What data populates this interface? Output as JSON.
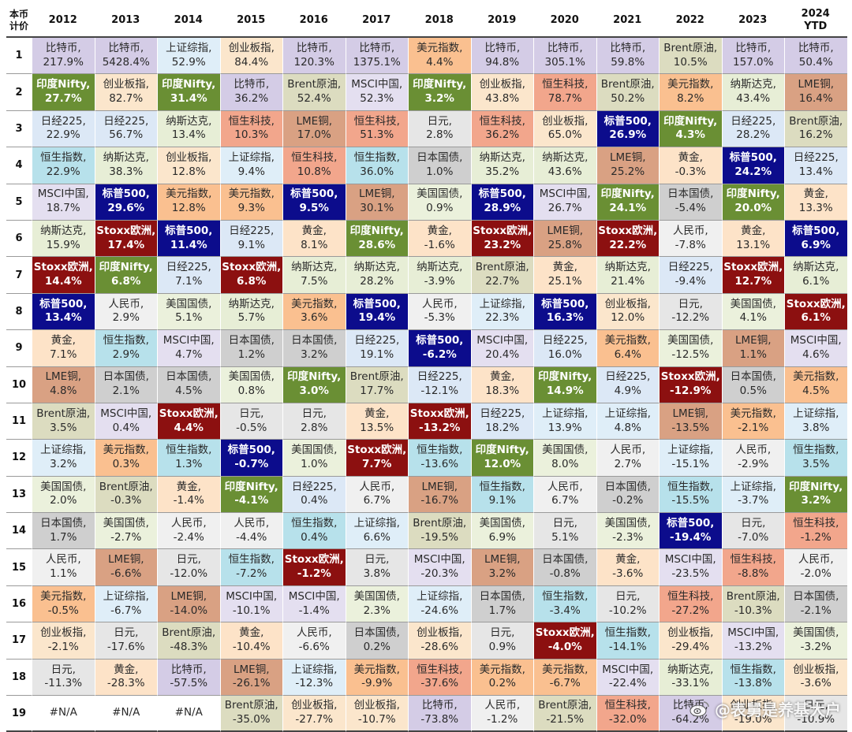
{
  "corner_label": "本币\n计价",
  "columns": [
    "2012",
    "2013",
    "2014",
    "2015",
    "2016",
    "2017",
    "2018",
    "2019",
    "2020",
    "2021",
    "2022",
    "2023",
    "2024\nYTD"
  ],
  "asset_colors": {
    "比特币": "#d4cce6",
    "印度Nifty": "#6a8f34",
    "日经225": "#dce8f6",
    "恒生指数": "#b7e1eb",
    "MSCI中国": "#e4dff0",
    "纳斯达克": "#e7eed6",
    "Stoxx欧洲": "#8c1010",
    "标普500": "#0c0c8c",
    "黄金": "#fde3c8",
    "LME铜": "#d9a183",
    "Brent原油": "#dcdcc0",
    "上证综指": "#dfeef8",
    "美国国债": "#ebf1dc",
    "日本国债": "#cfcfcf",
    "人民币": "#f0f0f0",
    "美元指数": "#fac090",
    "创业板指": "#fbe6cc",
    "日元": "#e6e6e6",
    "恒生科技": "#f2a68c",
    "#N/A": "#ffffff"
  },
  "dark_assets": [
    "印度Nifty",
    "Stoxx欧洲",
    "标普500"
  ],
  "chart_data": {
    "type": "table",
    "title": "",
    "columns": [
      "2012",
      "2013",
      "2014",
      "2015",
      "2016",
      "2017",
      "2018",
      "2019",
      "2020",
      "2021",
      "2022",
      "2023",
      "2024 YTD"
    ],
    "rows": [
      {
        "rank": "1",
        "cells": [
          [
            "比特币",
            "217.9%"
          ],
          [
            "比特币",
            "5428.4%"
          ],
          [
            "上证综指",
            "52.9%"
          ],
          [
            "创业板指",
            "84.4%"
          ],
          [
            "比特币",
            "120.3%"
          ],
          [
            "比特币",
            "1375.1%"
          ],
          [
            "美元指数",
            "4.4%"
          ],
          [
            "比特币",
            "94.8%"
          ],
          [
            "比特币",
            "305.1%"
          ],
          [
            "比特币",
            "59.8%"
          ],
          [
            "Brent原油",
            "10.5%"
          ],
          [
            "比特币",
            "157.0%"
          ],
          [
            "比特币",
            "50.4%"
          ]
        ]
      },
      {
        "rank": "2",
        "cells": [
          [
            "印度Nifty",
            "27.7%"
          ],
          [
            "创业板指",
            "82.7%"
          ],
          [
            "印度Nifty",
            "31.4%"
          ],
          [
            "比特币",
            "36.2%"
          ],
          [
            "Brent原油",
            "52.4%"
          ],
          [
            "MSCI中国",
            "52.3%"
          ],
          [
            "印度Nifty",
            "3.2%"
          ],
          [
            "创业板指",
            "43.8%"
          ],
          [
            "恒生科技",
            "78.7%"
          ],
          [
            "Brent原油",
            "50.2%"
          ],
          [
            "美元指数",
            "8.2%"
          ],
          [
            "纳斯达克",
            "43.4%"
          ],
          [
            "LME铜",
            "16.4%"
          ]
        ]
      },
      {
        "rank": "3",
        "cells": [
          [
            "日经225",
            "22.9%"
          ],
          [
            "日经225",
            "56.7%"
          ],
          [
            "纳斯达克",
            "13.4%"
          ],
          [
            "恒生科技",
            "10.3%"
          ],
          [
            "LME铜",
            "17.0%"
          ],
          [
            "恒生科技",
            "51.3%"
          ],
          [
            "日元",
            "2.8%"
          ],
          [
            "恒生科技",
            "36.2%"
          ],
          [
            "创业板指",
            "65.0%"
          ],
          [
            "标普500",
            "26.9%"
          ],
          [
            "印度Nifty",
            "4.3%"
          ],
          [
            "日经225",
            "28.2%"
          ],
          [
            "Brent原油",
            "16.2%"
          ]
        ]
      },
      {
        "rank": "4",
        "cells": [
          [
            "恒生指数",
            "22.9%"
          ],
          [
            "纳斯达克",
            "38.3%"
          ],
          [
            "创业板指",
            "12.8%"
          ],
          [
            "上证综指",
            "9.4%"
          ],
          [
            "恒生科技",
            "10.8%"
          ],
          [
            "恒生指数",
            "36.0%"
          ],
          [
            "日本国债",
            "1.0%"
          ],
          [
            "纳斯达克",
            "35.2%"
          ],
          [
            "纳斯达克",
            "43.6%"
          ],
          [
            "LME铜",
            "25.2%"
          ],
          [
            "黄金",
            "-0.3%"
          ],
          [
            "标普500",
            "24.2%"
          ],
          [
            "日经225",
            "13.4%"
          ]
        ]
      },
      {
        "rank": "5",
        "cells": [
          [
            "MSCI中国",
            "18.7%"
          ],
          [
            "标普500",
            "29.6%"
          ],
          [
            "美元指数",
            "12.8%"
          ],
          [
            "美元指数",
            "9.3%"
          ],
          [
            "标普500",
            "9.5%"
          ],
          [
            "LME铜",
            "30.1%"
          ],
          [
            "美国国债",
            "0.9%"
          ],
          [
            "标普500",
            "28.9%"
          ],
          [
            "MSCI中国",
            "26.7%"
          ],
          [
            "印度Nifty",
            "24.1%"
          ],
          [
            "日本国债",
            "-5.4%"
          ],
          [
            "印度Nifty",
            "20.0%"
          ],
          [
            "黄金",
            "13.3%"
          ]
        ]
      },
      {
        "rank": "6",
        "cells": [
          [
            "纳斯达克",
            "15.9%"
          ],
          [
            "Stoxx欧洲",
            "17.4%"
          ],
          [
            "标普500",
            "11.4%"
          ],
          [
            "日经225",
            "9.1%"
          ],
          [
            "黄金",
            "8.1%"
          ],
          [
            "印度Nifty",
            "28.6%"
          ],
          [
            "黄金",
            "-1.6%"
          ],
          [
            "Stoxx欧洲",
            "23.2%"
          ],
          [
            "LME铜",
            "25.8%"
          ],
          [
            "Stoxx欧洲",
            "22.2%"
          ],
          [
            "人民币",
            "-7.8%"
          ],
          [
            "黄金",
            "13.1%"
          ],
          [
            "标普500",
            "6.9%"
          ]
        ]
      },
      {
        "rank": "7",
        "cells": [
          [
            "Stoxx欧洲",
            "14.4%"
          ],
          [
            "印度Nifty",
            "6.8%"
          ],
          [
            "日经225",
            "7.1%"
          ],
          [
            "Stoxx欧洲",
            "6.8%"
          ],
          [
            "纳斯达克",
            "7.5%"
          ],
          [
            "纳斯达克",
            "28.2%"
          ],
          [
            "纳斯达克",
            "-3.9%"
          ],
          [
            "Brent原油",
            "22.7%"
          ],
          [
            "黄金",
            "25.1%"
          ],
          [
            "纳斯达克",
            "21.4%"
          ],
          [
            "日经225",
            "-9.4%"
          ],
          [
            "Stoxx欧洲",
            "12.7%"
          ],
          [
            "纳斯达克",
            "6.1%"
          ]
        ]
      },
      {
        "rank": "8",
        "cells": [
          [
            "标普500",
            "13.4%"
          ],
          [
            "人民币",
            "2.9%"
          ],
          [
            "美国国债",
            "5.1%"
          ],
          [
            "纳斯达克",
            "5.7%"
          ],
          [
            "美元指数",
            "3.6%"
          ],
          [
            "标普500",
            "19.4%"
          ],
          [
            "人民币",
            "-5.3%"
          ],
          [
            "上证综指",
            "22.3%"
          ],
          [
            "标普500",
            "16.3%"
          ],
          [
            "创业板指",
            "12.0%"
          ],
          [
            "日元",
            "-12.2%"
          ],
          [
            "美国国债",
            "4.1%"
          ],
          [
            "Stoxx欧洲",
            "6.1%"
          ]
        ]
      },
      {
        "rank": "9",
        "cells": [
          [
            "黄金",
            "7.1%"
          ],
          [
            "恒生指数",
            "2.9%"
          ],
          [
            "MSCI中国",
            "4.7%"
          ],
          [
            "日本国债",
            "1.2%"
          ],
          [
            "日本国债",
            "3.2%"
          ],
          [
            "日经225",
            "19.1%"
          ],
          [
            "标普500",
            "-6.2%"
          ],
          [
            "MSCI中国",
            "20.4%"
          ],
          [
            "日经225",
            "16.0%"
          ],
          [
            "美元指数",
            "6.4%"
          ],
          [
            "美国国债",
            "-12.5%"
          ],
          [
            "LME铜",
            "1.1%"
          ],
          [
            "MSCI中国",
            "4.6%"
          ]
        ]
      },
      {
        "rank": "10",
        "cells": [
          [
            "LME铜",
            "4.8%"
          ],
          [
            "日本国债",
            "2.1%"
          ],
          [
            "日本国债",
            "4.5%"
          ],
          [
            "美国国债",
            "0.8%"
          ],
          [
            "印度Nifty",
            "3.0%"
          ],
          [
            "Brent原油",
            "17.7%"
          ],
          [
            "日经225",
            "-12.1%"
          ],
          [
            "黄金",
            "18.3%"
          ],
          [
            "印度Nifty",
            "14.9%"
          ],
          [
            "日经225",
            "4.9%"
          ],
          [
            "Stoxx欧洲",
            "-12.9%"
          ],
          [
            "日本国债",
            "0.5%"
          ],
          [
            "美元指数",
            "4.5%"
          ]
        ]
      },
      {
        "rank": "11",
        "cells": [
          [
            "Brent原油",
            "3.5%"
          ],
          [
            "MSCI中国",
            "0.4%"
          ],
          [
            "Stoxx欧洲",
            "4.4%"
          ],
          [
            "日元",
            "-0.5%"
          ],
          [
            "日元",
            "2.8%"
          ],
          [
            "黄金",
            "13.5%"
          ],
          [
            "Stoxx欧洲",
            "-13.2%"
          ],
          [
            "日经225",
            "18.2%"
          ],
          [
            "上证综指",
            "13.9%"
          ],
          [
            "上证综指",
            "4.8%"
          ],
          [
            "LME铜",
            "-13.5%"
          ],
          [
            "美元指数",
            "-2.1%"
          ],
          [
            "上证综指",
            "3.8%"
          ]
        ]
      },
      {
        "rank": "12",
        "cells": [
          [
            "上证综指",
            "3.2%"
          ],
          [
            "美元指数",
            "0.3%"
          ],
          [
            "恒生指数",
            "1.3%"
          ],
          [
            "标普500",
            "-0.7%"
          ],
          [
            "美国国债",
            "1.0%"
          ],
          [
            "Stoxx欧洲",
            "7.7%"
          ],
          [
            "恒生指数",
            "-13.6%"
          ],
          [
            "印度Nifty",
            "12.0%"
          ],
          [
            "美国国债",
            "8.0%"
          ],
          [
            "人民币",
            "2.7%"
          ],
          [
            "上证综指",
            "-15.1%"
          ],
          [
            "人民币",
            "-2.9%"
          ],
          [
            "恒生指数",
            "3.5%"
          ]
        ]
      },
      {
        "rank": "13",
        "cells": [
          [
            "美国国债",
            "2.0%"
          ],
          [
            "Brent原油",
            "-0.3%"
          ],
          [
            "黄金",
            "-1.4%"
          ],
          [
            "印度Nifty",
            "-4.1%"
          ],
          [
            "日经225",
            "0.4%"
          ],
          [
            "人民币",
            "6.7%"
          ],
          [
            "LME铜",
            "-16.7%"
          ],
          [
            "恒生指数",
            "9.1%"
          ],
          [
            "人民币",
            "6.7%"
          ],
          [
            "日本国债",
            "-0.2%"
          ],
          [
            "恒生指数",
            "-15.5%"
          ],
          [
            "上证综指",
            "-3.7%"
          ],
          [
            "印度Nifty",
            "3.2%"
          ]
        ]
      },
      {
        "rank": "14",
        "cells": [
          [
            "日本国债",
            "1.7%"
          ],
          [
            "美国国债",
            "-2.7%"
          ],
          [
            "人民币",
            "-2.4%"
          ],
          [
            "人民币",
            "-4.4%"
          ],
          [
            "恒生指数",
            "0.4%"
          ],
          [
            "上证综指",
            "6.6%"
          ],
          [
            "Brent原油",
            "-19.5%"
          ],
          [
            "美国国债",
            "6.9%"
          ],
          [
            "日元",
            "5.1%"
          ],
          [
            "美国国债",
            "-2.3%"
          ],
          [
            "标普500",
            "-19.4%"
          ],
          [
            "日元",
            "-7.0%"
          ],
          [
            "恒生科技",
            "-1.2%"
          ]
        ]
      },
      {
        "rank": "15",
        "cells": [
          [
            "人民币",
            "1.1%"
          ],
          [
            "LME铜",
            "-6.6%"
          ],
          [
            "日元",
            "-12.0%"
          ],
          [
            "恒生指数",
            "-7.2%"
          ],
          [
            "Stoxx欧洲",
            "-1.2%"
          ],
          [
            "日元",
            "3.8%"
          ],
          [
            "MSCI中国",
            "-20.3%"
          ],
          [
            "LME铜",
            "3.2%"
          ],
          [
            "日本国债",
            "-0.8%"
          ],
          [
            "黄金",
            "-3.6%"
          ],
          [
            "MSCI中国",
            "-23.5%"
          ],
          [
            "恒生科技",
            "-8.8%"
          ],
          [
            "人民币",
            "-2.0%"
          ]
        ]
      },
      {
        "rank": "16",
        "cells": [
          [
            "美元指数",
            "-0.5%"
          ],
          [
            "上证综指",
            "-6.7%"
          ],
          [
            "LME铜",
            "-14.0%"
          ],
          [
            "MSCI中国",
            "-10.1%"
          ],
          [
            "MSCI中国",
            "-1.4%"
          ],
          [
            "美国国债",
            "2.3%"
          ],
          [
            "上证综指",
            "-24.6%"
          ],
          [
            "日本国债",
            "1.7%"
          ],
          [
            "恒生指数",
            "-3.4%"
          ],
          [
            "日元",
            "-10.2%"
          ],
          [
            "恒生科技",
            "-27.2%"
          ],
          [
            "Brent原油",
            "-10.3%"
          ],
          [
            "日本国债",
            "-2.1%"
          ]
        ]
      },
      {
        "rank": "17",
        "cells": [
          [
            "创业板指",
            "-2.1%"
          ],
          [
            "日元",
            "-17.6%"
          ],
          [
            "Brent原油",
            "-48.3%"
          ],
          [
            "黄金",
            "-10.4%"
          ],
          [
            "人民币",
            "-6.6%"
          ],
          [
            "日本国债",
            "0.2%"
          ],
          [
            "创业板指",
            "-28.6%"
          ],
          [
            "日元",
            "0.9%"
          ],
          [
            "Stoxx欧洲",
            "-4.0%"
          ],
          [
            "恒生指数",
            "-14.1%"
          ],
          [
            "创业板指",
            "-29.4%"
          ],
          [
            "MSCI中国",
            "-13.2%"
          ],
          [
            "美国国债",
            "-3.2%"
          ]
        ]
      },
      {
        "rank": "18",
        "cells": [
          [
            "日元",
            "-11.3%"
          ],
          [
            "黄金",
            "-28.3%"
          ],
          [
            "比特币",
            "-57.5%"
          ],
          [
            "LME铜",
            "-26.1%"
          ],
          [
            "上证综指",
            "-12.3%"
          ],
          [
            "美元指数",
            "-9.9%"
          ],
          [
            "恒生科技",
            "-37.6%"
          ],
          [
            "美元指数",
            "0.2%"
          ],
          [
            "美元指数",
            "-6.7%"
          ],
          [
            "MSCI中国",
            "-22.4%"
          ],
          [
            "纳斯达克",
            "-33.1%"
          ],
          [
            "恒生指数",
            "-13.8%"
          ],
          [
            "创业板指",
            "-3.6%"
          ]
        ]
      },
      {
        "rank": "19",
        "cells": [
          [
            "#N/A",
            ""
          ],
          [
            "#N/A",
            ""
          ],
          [
            "#N/A",
            ""
          ],
          [
            "Brent原油",
            "-35.0%"
          ],
          [
            "创业板指",
            "-27.7%"
          ],
          [
            "创业板指",
            "-10.7%"
          ],
          [
            "比特币",
            "-73.8%"
          ],
          [
            "人民币",
            "-1.2%"
          ],
          [
            "Brent原油",
            "-21.5%"
          ],
          [
            "恒生科技",
            "-32.0%"
          ],
          [
            "比特币",
            "-64.2%"
          ],
          [
            "创业板指",
            "-19.0%"
          ],
          [
            "日元",
            "-10.9%"
          ]
        ]
      }
    ]
  },
  "watermark": "@表舅是养基大户",
  "watermark_icon": "weibo-icon"
}
